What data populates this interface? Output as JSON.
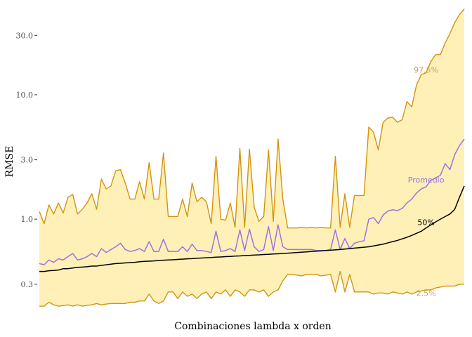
{
  "chart_data": {
    "type": "area",
    "title": "",
    "xlabel": "Combinaciones lambda x orden",
    "ylabel": "RMSE",
    "y_scale": "log10",
    "ylim": [
      0.19,
      52
    ],
    "grid": false,
    "legend": "none",
    "y_ticks": [
      0.3,
      1.0,
      3.0,
      10.0,
      30.0
    ],
    "y_tick_labels": [
      "0.3",
      "1.0",
      "3.0",
      "10.0",
      "30.0"
    ],
    "n_points": 90,
    "colors": {
      "band_fill": "#fff0b8",
      "band_stroke": "#d4930f",
      "band_label": "#c8a25a",
      "mean_line": "#a071e0",
      "median_line": "#000000",
      "axis": "#333333"
    },
    "series": [
      {
        "name": "97.5%",
        "role": "upper",
        "values": [
          1.15,
          0.92,
          1.3,
          1.1,
          1.35,
          1.12,
          1.5,
          1.58,
          1.1,
          1.2,
          1.35,
          1.6,
          1.2,
          2.1,
          1.75,
          1.85,
          2.45,
          2.5,
          1.95,
          1.45,
          1.45,
          2.0,
          1.45,
          2.85,
          1.45,
          1.45,
          3.4,
          1.05,
          1.05,
          1.05,
          1.45,
          1.05,
          1.95,
          1.38,
          1.5,
          1.38,
          0.92,
          3.2,
          1.0,
          0.98,
          1.35,
          0.86,
          3.7,
          0.86,
          3.65,
          1.25,
          0.96,
          1.05,
          3.6,
          0.96,
          4.4,
          1.45,
          0.85,
          0.85,
          0.85,
          0.86,
          0.85,
          0.86,
          0.85,
          0.86,
          0.85,
          0.85,
          3.2,
          0.86,
          1.6,
          0.86,
          1.55,
          1.55,
          1.55,
          5.5,
          5.0,
          3.6,
          6.0,
          6.5,
          6.6,
          6.0,
          6.3,
          8.8,
          8.0,
          12.0,
          14.5,
          15.0,
          18.5,
          21.0,
          21.0,
          26.0,
          31.0,
          38.0,
          44.0,
          49.0
        ]
      },
      {
        "name": "Promedio",
        "role": "mean",
        "values": [
          0.44,
          0.43,
          0.47,
          0.45,
          0.48,
          0.47,
          0.5,
          0.53,
          0.47,
          0.48,
          0.5,
          0.53,
          0.5,
          0.58,
          0.54,
          0.57,
          0.6,
          0.64,
          0.57,
          0.55,
          0.56,
          0.58,
          0.55,
          0.66,
          0.55,
          0.55,
          0.69,
          0.55,
          0.55,
          0.55,
          0.6,
          0.55,
          0.63,
          0.56,
          0.56,
          0.55,
          0.54,
          0.8,
          0.55,
          0.56,
          0.58,
          0.55,
          0.82,
          0.56,
          0.83,
          0.6,
          0.55,
          0.57,
          0.87,
          0.56,
          0.9,
          0.6,
          0.57,
          0.57,
          0.57,
          0.57,
          0.57,
          0.57,
          0.56,
          0.56,
          0.56,
          0.57,
          0.82,
          0.57,
          0.7,
          0.58,
          0.64,
          0.66,
          0.67,
          1.0,
          1.03,
          0.92,
          1.08,
          1.16,
          1.19,
          1.17,
          1.22,
          1.35,
          1.45,
          1.62,
          1.75,
          1.82,
          2.05,
          2.15,
          2.25,
          2.8,
          2.5,
          3.3,
          3.9,
          4.4
        ]
      },
      {
        "name": "50%",
        "role": "median",
        "values": [
          0.38,
          0.38,
          0.385,
          0.387,
          0.39,
          0.4,
          0.4,
          0.405,
          0.41,
          0.412,
          0.415,
          0.42,
          0.42,
          0.425,
          0.43,
          0.435,
          0.44,
          0.442,
          0.445,
          0.448,
          0.45,
          0.455,
          0.458,
          0.46,
          0.462,
          0.465,
          0.468,
          0.47,
          0.472,
          0.475,
          0.477,
          0.48,
          0.482,
          0.485,
          0.487,
          0.49,
          0.492,
          0.495,
          0.497,
          0.5,
          0.502,
          0.505,
          0.507,
          0.51,
          0.512,
          0.515,
          0.517,
          0.52,
          0.522,
          0.525,
          0.527,
          0.53,
          0.533,
          0.536,
          0.54,
          0.543,
          0.546,
          0.55,
          0.553,
          0.556,
          0.56,
          0.563,
          0.567,
          0.57,
          0.575,
          0.58,
          0.585,
          0.59,
          0.595,
          0.6,
          0.61,
          0.62,
          0.63,
          0.645,
          0.66,
          0.675,
          0.695,
          0.715,
          0.74,
          0.77,
          0.8,
          0.85,
          0.9,
          0.95,
          1.0,
          1.05,
          1.1,
          1.2,
          1.5,
          1.85
        ]
      },
      {
        "name": "2.5%",
        "role": "lower",
        "values": [
          0.2,
          0.2,
          0.215,
          0.205,
          0.2,
          0.202,
          0.205,
          0.2,
          0.205,
          0.2,
          0.203,
          0.205,
          0.21,
          0.205,
          0.208,
          0.21,
          0.21,
          0.21,
          0.21,
          0.215,
          0.215,
          0.22,
          0.22,
          0.25,
          0.22,
          0.21,
          0.22,
          0.26,
          0.26,
          0.23,
          0.26,
          0.24,
          0.25,
          0.23,
          0.25,
          0.26,
          0.23,
          0.26,
          0.25,
          0.27,
          0.24,
          0.27,
          0.26,
          0.24,
          0.27,
          0.27,
          0.26,
          0.27,
          0.24,
          0.26,
          0.27,
          0.32,
          0.36,
          0.36,
          0.355,
          0.35,
          0.36,
          0.36,
          0.36,
          0.35,
          0.355,
          0.36,
          0.26,
          0.38,
          0.26,
          0.36,
          0.26,
          0.26,
          0.26,
          0.26,
          0.25,
          0.255,
          0.255,
          0.25,
          0.26,
          0.255,
          0.25,
          0.26,
          0.25,
          0.26,
          0.265,
          0.27,
          0.27,
          0.28,
          0.285,
          0.29,
          0.29,
          0.29,
          0.3,
          0.3
        ]
      }
    ]
  }
}
